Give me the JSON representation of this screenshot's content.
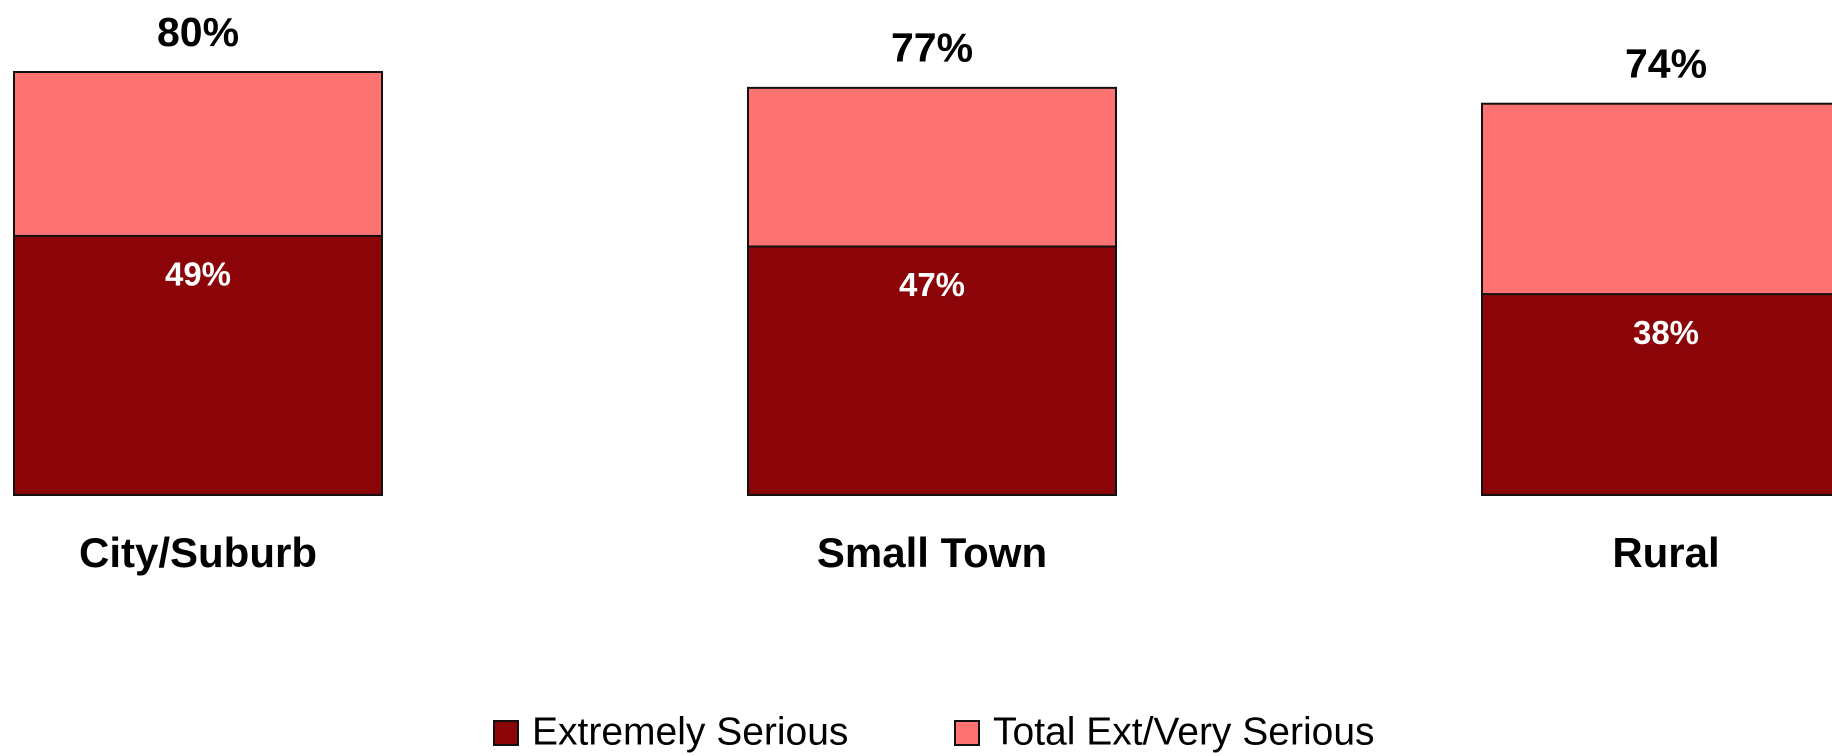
{
  "chart_data": {
    "type": "bar",
    "categories": [
      "City/Suburb",
      "Small Town",
      "Rural"
    ],
    "series": [
      {
        "name": "Extremely Serious",
        "color": "#8b0508",
        "values": [
          49,
          47,
          38
        ],
        "value_labels": [
          "49%",
          "47%",
          "38%"
        ]
      },
      {
        "name": "Total Ext/Very Serious",
        "color": "#ff7272",
        "values": [
          80,
          77,
          74
        ],
        "value_labels": [
          "80%",
          "77%",
          "74%"
        ]
      }
    ]
  }
}
